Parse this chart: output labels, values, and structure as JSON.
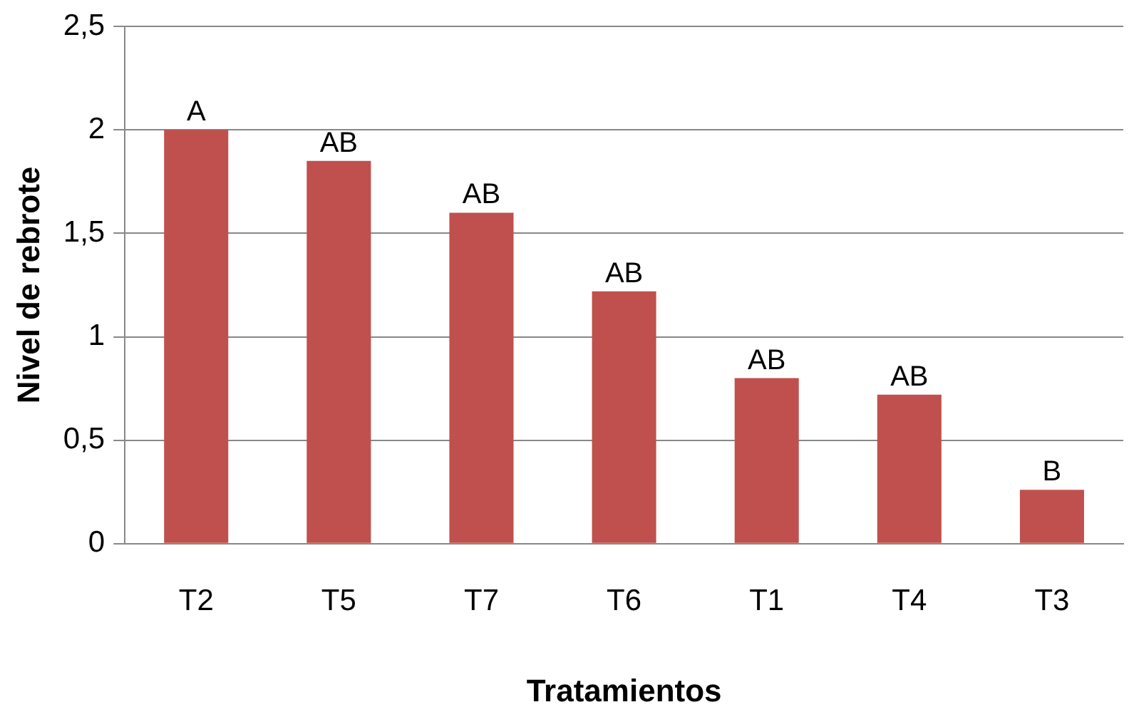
{
  "chart_data": {
    "type": "bar",
    "xlabel": "Tratamientos",
    "ylabel": "Nivel de rebrote",
    "categories": [
      "T2",
      "T5",
      "T7",
      "T6",
      "T1",
      "T4",
      "T3"
    ],
    "values": [
      2.0,
      1.85,
      1.6,
      1.22,
      0.8,
      0.72,
      0.26
    ],
    "color": "#c0504d",
    "ylim": [
      0,
      2.5
    ],
    "yticks": [
      {
        "value": 0,
        "label": "0"
      },
      {
        "value": 0.5,
        "label": "0,5"
      },
      {
        "value": 1,
        "label": "1"
      },
      {
        "value": 1.5,
        "label": "1,5"
      },
      {
        "value": 2,
        "label": "2"
      },
      {
        "value": 2.5,
        "label": "2,5"
      }
    ],
    "grid": "y",
    "annotations": [
      {
        "text": "A",
        "x": "T2",
        "y": 2.0
      },
      {
        "text": "AB",
        "x": "T5",
        "y": 1.85
      },
      {
        "text": "AB",
        "x": "T7",
        "y": 1.6
      },
      {
        "text": "AB",
        "x": "T6",
        "y": 1.22
      },
      {
        "text": "AB",
        "x": "T1",
        "y": 0.8
      },
      {
        "text": "AB",
        "x": "T4",
        "y": 0.72
      },
      {
        "text": "B",
        "x": "T3",
        "y": 0.26
      }
    ]
  }
}
